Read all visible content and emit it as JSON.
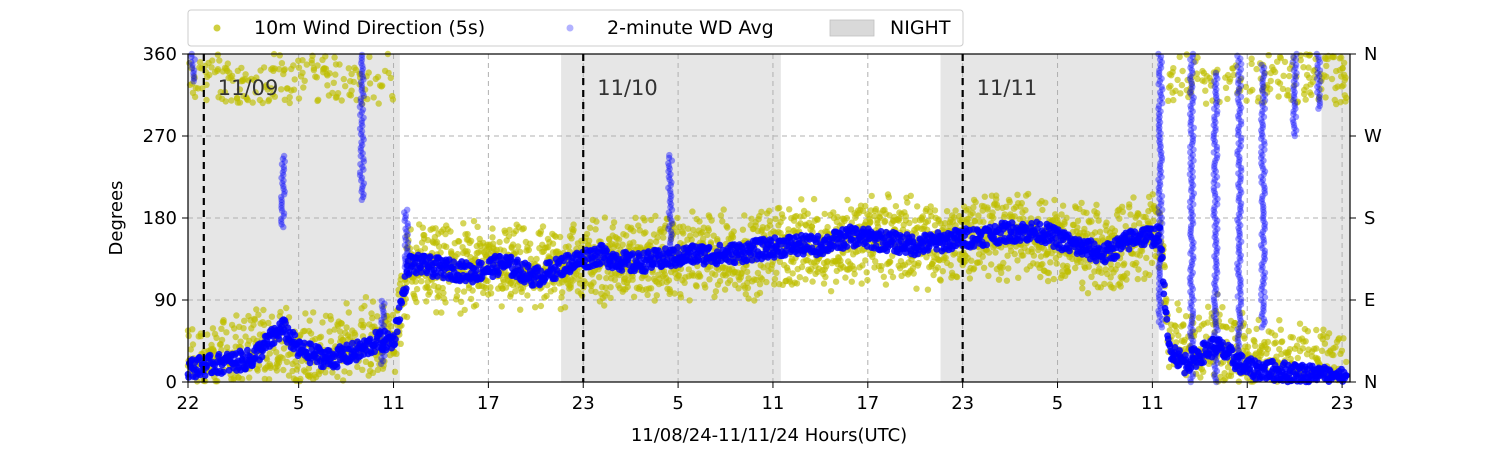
{
  "chart_data": {
    "type": "scatter",
    "title": "",
    "xlabel": "11/08/24-11/11/24  Hours(UTC)",
    "ylabel": "Degrees",
    "x_range_hours": [
      0,
      73.5
    ],
    "ylim": [
      0,
      360
    ],
    "x_tick_hours": [
      0,
      7,
      13,
      19,
      25,
      31,
      37,
      43,
      49,
      55,
      61,
      67,
      73
    ],
    "x_tick_labels": [
      "22",
      "5",
      "11",
      "17",
      "23",
      "5",
      "11",
      "17",
      "23",
      "5",
      "11",
      "17",
      "23"
    ],
    "y_ticks": [
      0,
      90,
      180,
      270,
      360
    ],
    "y_tick_labels": [
      "0",
      "90",
      "180",
      "270",
      "360"
    ],
    "y2_tick_labels": [
      "N",
      "E",
      "S",
      "W",
      "N"
    ],
    "grid": true,
    "legend_placement": "top-left, above plot",
    "legend": [
      {
        "label": "10m Wind Direction (5s)",
        "color": "#bfbf00",
        "marker": "dot"
      },
      {
        "label": "2-minute WD Avg",
        "color": "#0000ff",
        "marker": "dot"
      },
      {
        "label": "NIGHT",
        "color": "#d9d9d9",
        "marker": "patch"
      }
    ],
    "night_periods_hours": [
      [
        0,
        13.4
      ],
      [
        23.6,
        37.5
      ],
      [
        47.6,
        61.4
      ],
      [
        71.7,
        73.5
      ]
    ],
    "day_markers": [
      {
        "hour": 1,
        "label": "11/09"
      },
      {
        "hour": 25,
        "label": "11/10"
      },
      {
        "hour": 49,
        "label": "11/11"
      }
    ],
    "series": [
      {
        "name": "10m Wind Direction (5s)",
        "color": "#bfbf00",
        "scatter_half_width_deg": 45,
        "trend": [
          [
            0,
            20
          ],
          [
            3,
            25
          ],
          [
            5,
            40
          ],
          [
            7,
            25
          ],
          [
            9,
            30
          ],
          [
            11,
            45
          ],
          [
            13,
            45
          ],
          [
            14,
            130
          ],
          [
            17,
            125
          ],
          [
            20,
            125
          ],
          [
            22,
            120
          ],
          [
            24,
            130
          ],
          [
            27,
            135
          ],
          [
            30,
            135
          ],
          [
            33,
            140
          ],
          [
            36,
            140
          ],
          [
            37,
            150
          ],
          [
            40,
            150
          ],
          [
            44,
            160
          ],
          [
            47,
            150
          ],
          [
            50,
            160
          ],
          [
            53,
            165
          ],
          [
            56,
            150
          ],
          [
            58,
            140
          ],
          [
            60,
            160
          ],
          [
            61.5,
            160
          ],
          [
            62,
            60
          ],
          [
            63,
            30
          ],
          [
            65,
            50
          ],
          [
            67,
            30
          ],
          [
            70,
            15
          ],
          [
            73,
            10
          ]
        ]
      },
      {
        "name": "2-minute WD Avg",
        "color": "#0000ff",
        "trend": [
          [
            0,
            15
          ],
          [
            2,
            20
          ],
          [
            4,
            25
          ],
          [
            6,
            60
          ],
          [
            7,
            35
          ],
          [
            9,
            25
          ],
          [
            11,
            35
          ],
          [
            12,
            45
          ],
          [
            13,
            45
          ],
          [
            14,
            130
          ],
          [
            16,
            125
          ],
          [
            18,
            120
          ],
          [
            20,
            130
          ],
          [
            22,
            115
          ],
          [
            24,
            130
          ],
          [
            26,
            140
          ],
          [
            28,
            130
          ],
          [
            30,
            135
          ],
          [
            32,
            140
          ],
          [
            34,
            140
          ],
          [
            36,
            145
          ],
          [
            38,
            150
          ],
          [
            40,
            150
          ],
          [
            42,
            160
          ],
          [
            44,
            155
          ],
          [
            46,
            150
          ],
          [
            48,
            155
          ],
          [
            50,
            160
          ],
          [
            52,
            165
          ],
          [
            54,
            165
          ],
          [
            56,
            150
          ],
          [
            58,
            140
          ],
          [
            60,
            160
          ],
          [
            61.5,
            160
          ],
          [
            62,
            40
          ],
          [
            63,
            20
          ],
          [
            65,
            40
          ],
          [
            67,
            15
          ],
          [
            70,
            10
          ],
          [
            73,
            5
          ]
        ]
      }
    ]
  }
}
